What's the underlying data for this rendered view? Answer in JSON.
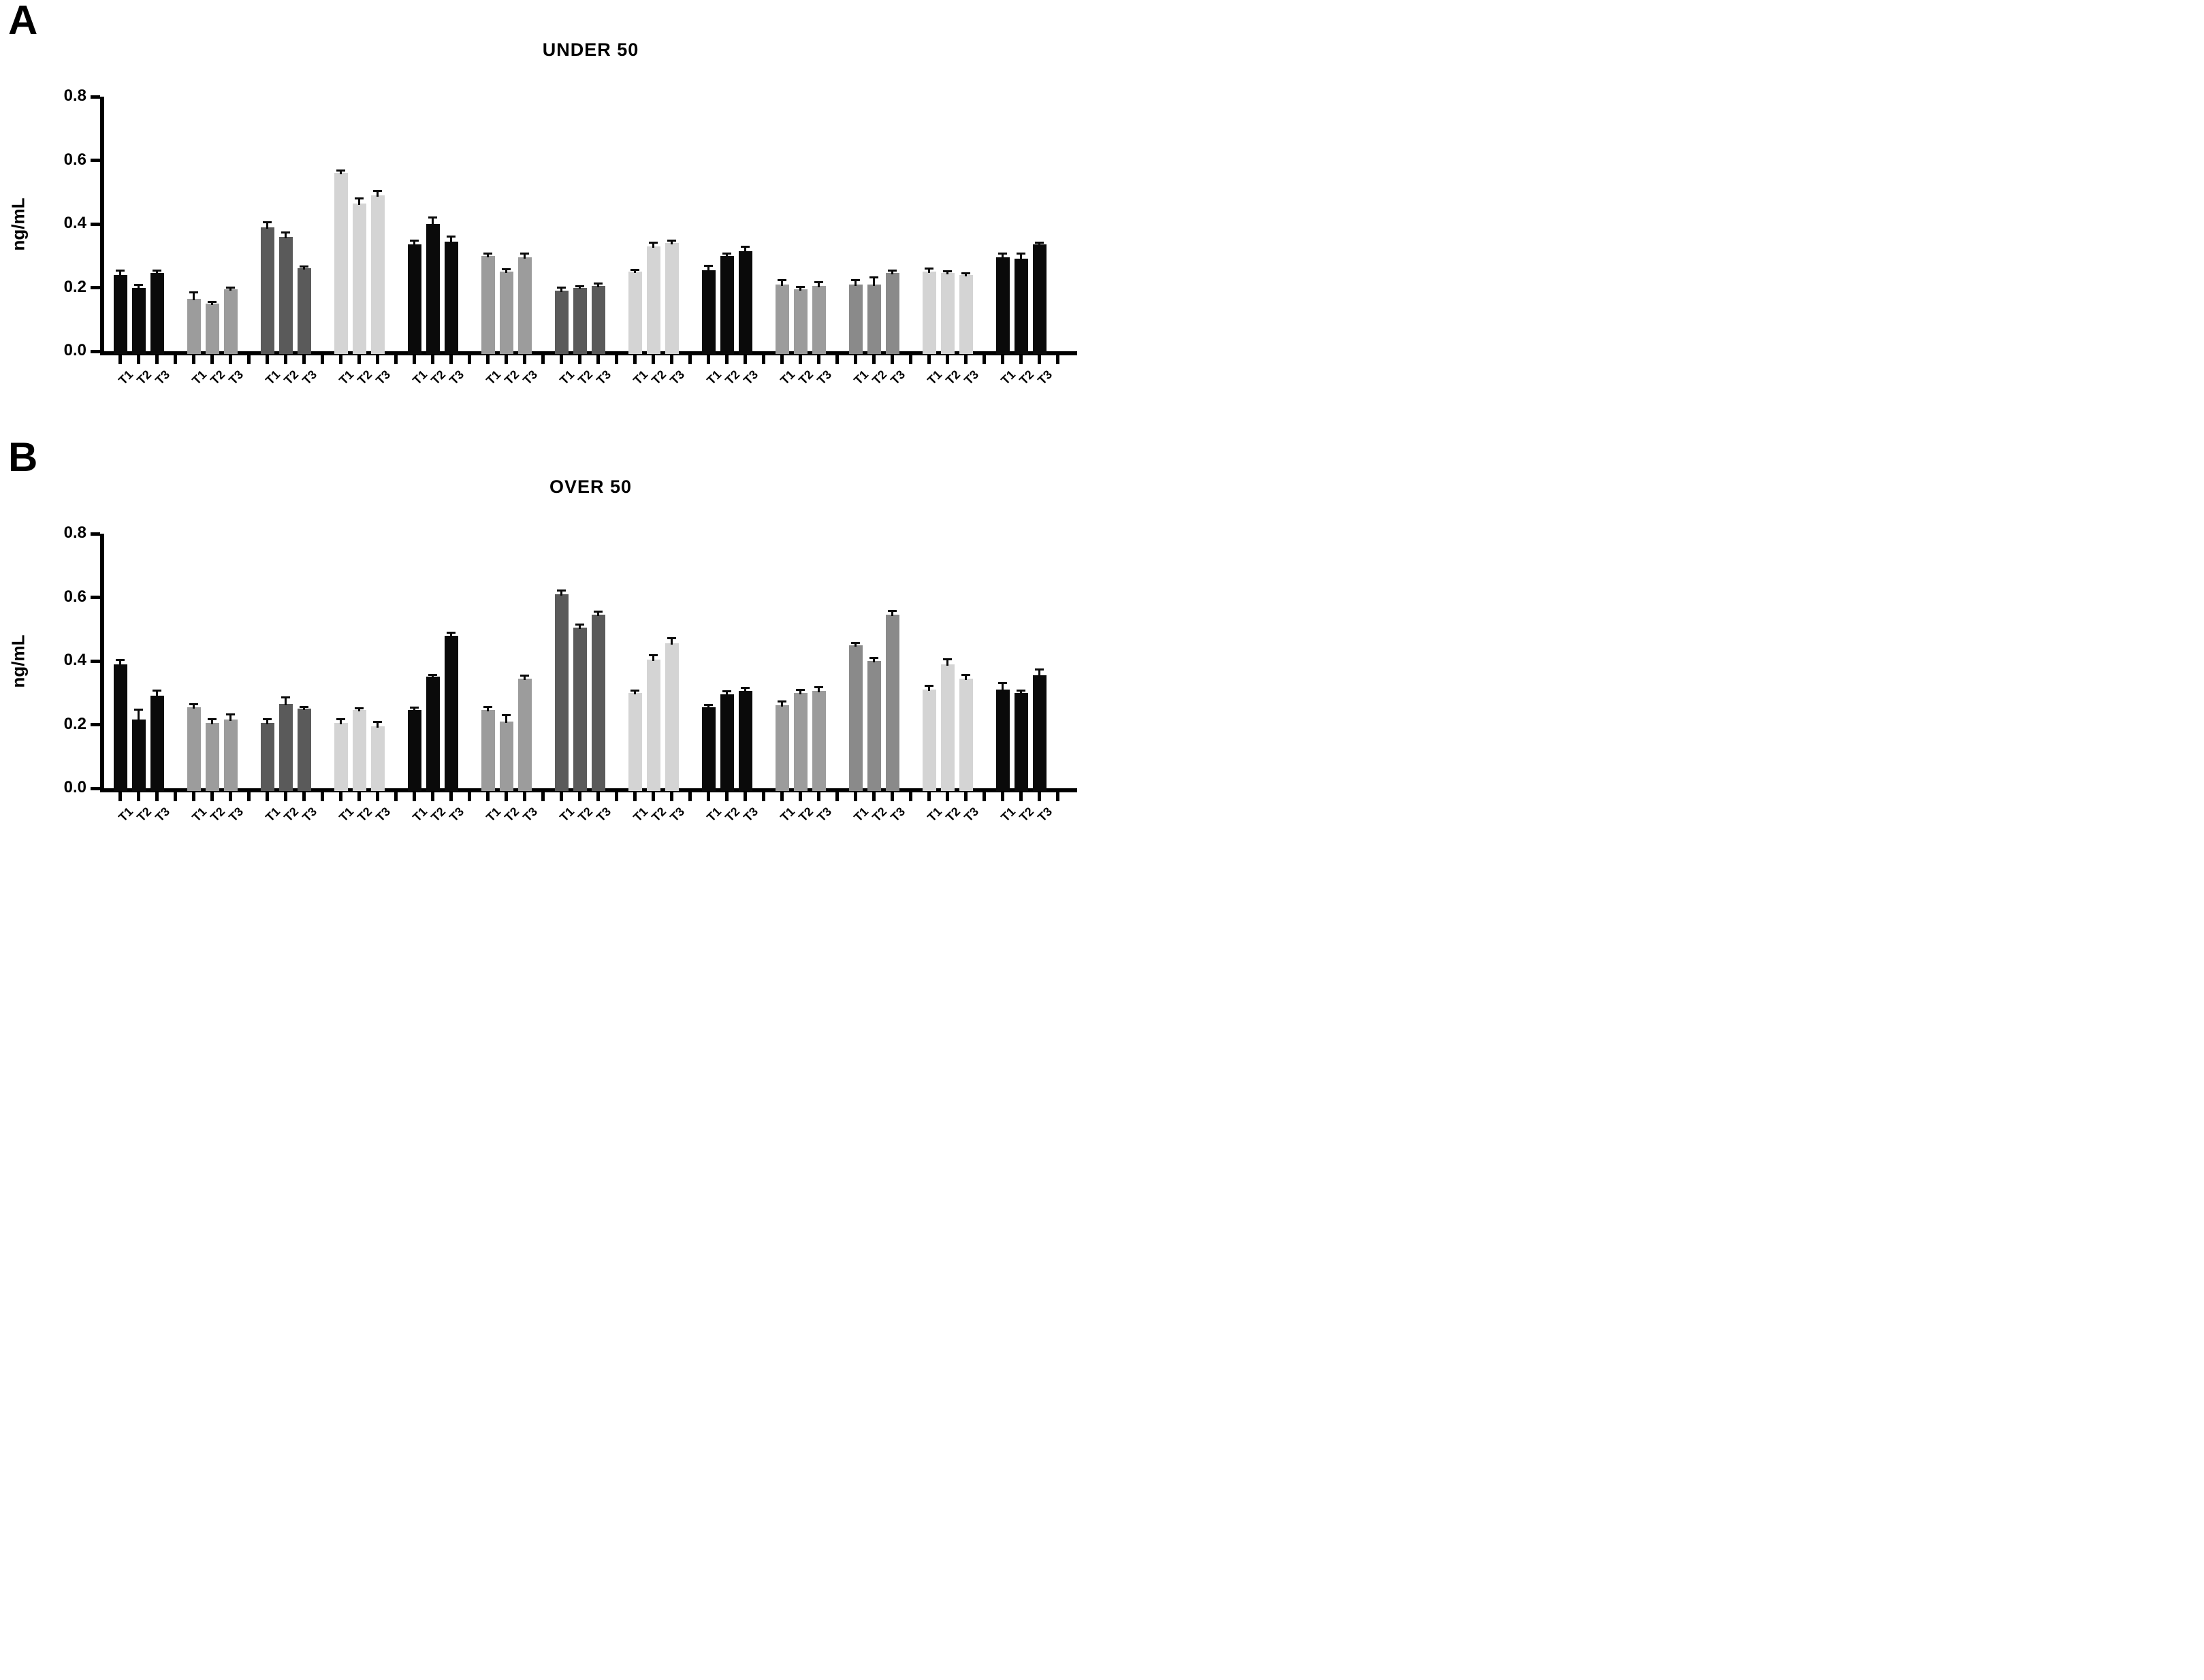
{
  "chart_data": [
    {
      "type": "bar",
      "panel_label": "A",
      "title": "UNDER 50",
      "ylabel": "ng/mL",
      "ylim": [
        0,
        0.8
      ],
      "yticks": [
        "0.0",
        "0.2",
        "0.4",
        "0.6",
        "0.8"
      ],
      "bar_labels": [
        "T1",
        "T2",
        "T3"
      ],
      "legend": "none",
      "grid": "off",
      "groups": [
        {
          "color": "#0a0a0a",
          "values": [
            0.24,
            0.2,
            0.245
          ],
          "errors": [
            0.012,
            0.008,
            0.008
          ]
        },
        {
          "color": "#9c9c9c",
          "values": [
            0.165,
            0.15,
            0.195
          ],
          "errors": [
            0.02,
            0.005,
            0.005
          ]
        },
        {
          "color": "#5a5a5a",
          "values": [
            0.39,
            0.36,
            0.26
          ],
          "errors": [
            0.015,
            0.012,
            0.005
          ]
        },
        {
          "color": "#d4d4d4",
          "values": [
            0.56,
            0.465,
            0.49
          ],
          "errors": [
            0.006,
            0.015,
            0.012
          ]
        },
        {
          "color": "#0a0a0a",
          "values": [
            0.335,
            0.4,
            0.345
          ],
          "errors": [
            0.012,
            0.02,
            0.015
          ]
        },
        {
          "color": "#9c9c9c",
          "values": [
            0.3,
            0.25,
            0.295
          ],
          "errors": [
            0.005,
            0.006,
            0.01
          ]
        },
        {
          "color": "#5a5a5a",
          "values": [
            0.19,
            0.2,
            0.205
          ],
          "errors": [
            0.008,
            0.004,
            0.006
          ]
        },
        {
          "color": "#d4d4d4",
          "values": [
            0.25,
            0.33,
            0.34
          ],
          "errors": [
            0.004,
            0.01,
            0.006
          ]
        },
        {
          "color": "#0a0a0a",
          "values": [
            0.255,
            0.3,
            0.315
          ],
          "errors": [
            0.012,
            0.006,
            0.012
          ]
        },
        {
          "color": "#9c9c9c",
          "values": [
            0.21,
            0.195,
            0.205
          ],
          "errors": [
            0.012,
            0.006,
            0.01
          ]
        },
        {
          "color": "#8a8a8a",
          "values": [
            0.21,
            0.21,
            0.245
          ],
          "errors": [
            0.012,
            0.02,
            0.008
          ]
        },
        {
          "color": "#d4d4d4",
          "values": [
            0.25,
            0.245,
            0.24
          ],
          "errors": [
            0.008,
            0.006,
            0.004
          ]
        },
        {
          "color": "#0a0a0a",
          "values": [
            0.295,
            0.29,
            0.335
          ],
          "errors": [
            0.01,
            0.015,
            0.005
          ]
        }
      ]
    },
    {
      "type": "bar",
      "panel_label": "B",
      "title": "OVER 50",
      "ylabel": "ng/mL",
      "ylim": [
        0,
        0.8
      ],
      "yticks": [
        "0.0",
        "0.2",
        "0.4",
        "0.6",
        "0.8"
      ],
      "bar_labels": [
        "T1",
        "T2",
        "T3"
      ],
      "legend": "none",
      "grid": "off",
      "groups": [
        {
          "color": "#0a0a0a",
          "values": [
            0.39,
            0.215,
            0.29
          ],
          "errors": [
            0.012,
            0.03,
            0.015
          ]
        },
        {
          "color": "#9c9c9c",
          "values": [
            0.255,
            0.205,
            0.215
          ],
          "errors": [
            0.008,
            0.012,
            0.015
          ]
        },
        {
          "color": "#5a5a5a",
          "values": [
            0.205,
            0.265,
            0.25
          ],
          "errors": [
            0.012,
            0.02,
            0.005
          ]
        },
        {
          "color": "#d4d4d4",
          "values": [
            0.205,
            0.245,
            0.195
          ],
          "errors": [
            0.01,
            0.006,
            0.012
          ]
        },
        {
          "color": "#0a0a0a",
          "values": [
            0.245,
            0.35,
            0.48
          ],
          "errors": [
            0.008,
            0.005,
            0.008
          ]
        },
        {
          "color": "#9c9c9c",
          "values": [
            0.245,
            0.21,
            0.345
          ],
          "errors": [
            0.01,
            0.018,
            0.008
          ]
        },
        {
          "color": "#5a5a5a",
          "values": [
            0.61,
            0.505,
            0.545
          ],
          "errors": [
            0.01,
            0.008,
            0.008
          ]
        },
        {
          "color": "#d4d4d4",
          "values": [
            0.3,
            0.405,
            0.455
          ],
          "errors": [
            0.005,
            0.012,
            0.015
          ]
        },
        {
          "color": "#0a0a0a",
          "values": [
            0.255,
            0.295,
            0.305
          ],
          "errors": [
            0.005,
            0.008,
            0.01
          ]
        },
        {
          "color": "#9c9c9c",
          "values": [
            0.26,
            0.3,
            0.305
          ],
          "errors": [
            0.012,
            0.008,
            0.012
          ]
        },
        {
          "color": "#8a8a8a",
          "values": [
            0.45,
            0.4,
            0.545
          ],
          "errors": [
            0.006,
            0.008,
            0.012
          ]
        },
        {
          "color": "#d4d4d4",
          "values": [
            0.31,
            0.39,
            0.345
          ],
          "errors": [
            0.01,
            0.015,
            0.01
          ]
        },
        {
          "color": "#0a0a0a",
          "values": [
            0.31,
            0.3,
            0.355
          ],
          "errors": [
            0.02,
            0.005,
            0.018
          ]
        }
      ]
    }
  ]
}
